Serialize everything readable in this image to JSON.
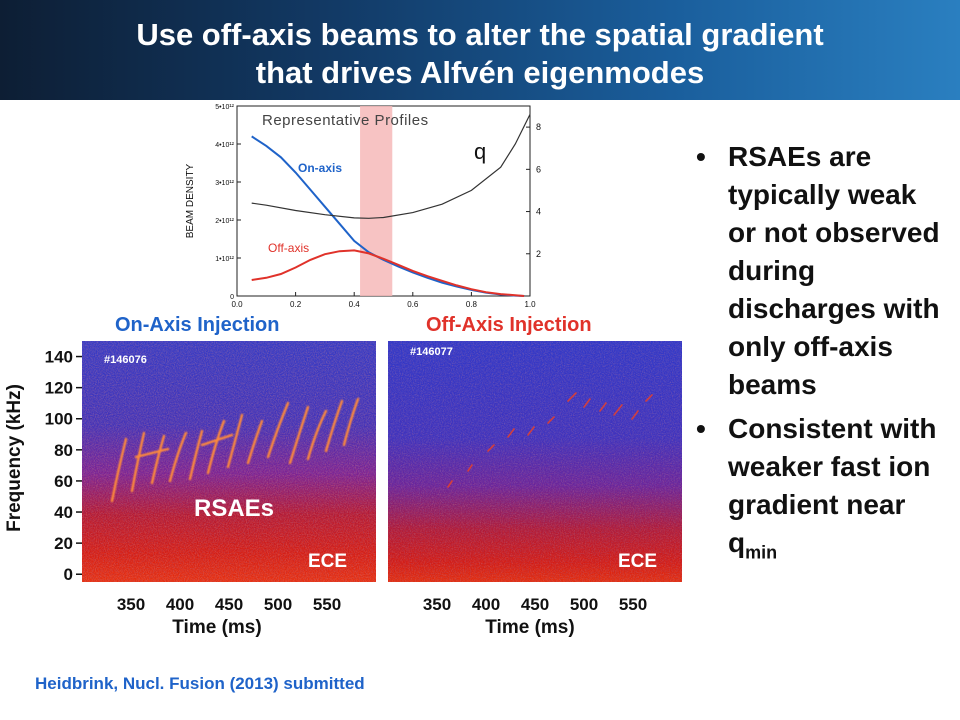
{
  "title": {
    "line1": "Use off-axis beams to alter the spatial gradient",
    "line2": "that drives Alfvén eigenmodes"
  },
  "bullets": [
    "RSAEs are typically weak or not observed during discharges with only off-axis beams",
    "Consistent with weaker fast ion gradient near q"
  ],
  "bullet_subscript": "min",
  "citation": "Heidbrink, Nucl. Fusion (2013) submitted",
  "colors": {
    "on_axis": "#1f63c9",
    "off_axis": "#e0322a",
    "q_line": "#333333",
    "band": "#f6b9b9",
    "title_bar_start": "#0d1e34",
    "title_bar_end": "#2a7fc0"
  },
  "chart_data": [
    {
      "type": "line",
      "title": "Representative Profiles",
      "ylabel": "BEAM DENSITY",
      "xlim": [
        0,
        1.0
      ],
      "ylim": [
        0,
        5000000000000.0
      ],
      "y2lim": [
        0,
        9
      ],
      "x_ticks": [
        "0.0",
        "0.2",
        "0.4",
        "0.6",
        "0.8",
        "1.0"
      ],
      "y_tick_values": [
        0,
        1000000000000.0,
        2000000000000.0,
        3000000000000.0,
        4000000000000.0,
        5000000000000.0
      ],
      "y_ticks": [
        "0",
        "1•10¹²",
        "2•10¹²",
        "3•10¹²",
        "4•10¹²",
        "5•10¹²"
      ],
      "y2_tick_values": [
        2,
        4,
        6,
        8
      ],
      "y2_ticks": [
        "2",
        "4",
        "6",
        "8"
      ],
      "highlight_band": [
        0.42,
        0.53
      ],
      "series": [
        {
          "name": "On-axis",
          "axis": "left",
          "x": [
            0.05,
            0.1,
            0.15,
            0.2,
            0.25,
            0.3,
            0.35,
            0.4,
            0.45,
            0.5,
            0.55,
            0.6,
            0.65,
            0.7,
            0.75,
            0.8,
            0.85,
            0.9,
            0.95,
            0.98
          ],
          "y": [
            4200000000000.0,
            3950000000000.0,
            3650000000000.0,
            3250000000000.0,
            2800000000000.0,
            2350000000000.0,
            1900000000000.0,
            1450000000000.0,
            1150000000000.0,
            950000000000.0,
            780000000000.0,
            620000000000.0,
            480000000000.0,
            350000000000.0,
            250000000000.0,
            160000000000.0,
            90000000000.0,
            40000000000.0,
            10000000000.0,
            0
          ]
        },
        {
          "name": "Off-axis",
          "axis": "left",
          "x": [
            0.05,
            0.1,
            0.15,
            0.2,
            0.25,
            0.3,
            0.35,
            0.4,
            0.45,
            0.5,
            0.55,
            0.6,
            0.65,
            0.7,
            0.75,
            0.8,
            0.85,
            0.9,
            0.95,
            0.98
          ],
          "y": [
            420000000000.0,
            480000000000.0,
            580000000000.0,
            750000000000.0,
            950000000000.0,
            1100000000000.0,
            1180000000000.0,
            1200000000000.0,
            1120000000000.0,
            980000000000.0,
            820000000000.0,
            660000000000.0,
            520000000000.0,
            400000000000.0,
            280000000000.0,
            180000000000.0,
            100000000000.0,
            50000000000.0,
            20000000000.0,
            0
          ]
        },
        {
          "name": "q",
          "axis": "right",
          "x": [
            0.05,
            0.1,
            0.2,
            0.3,
            0.4,
            0.45,
            0.5,
            0.6,
            0.7,
            0.8,
            0.9,
            0.95,
            1.0
          ],
          "y": [
            4.4,
            4.3,
            4.05,
            3.85,
            3.7,
            3.68,
            3.72,
            3.95,
            4.35,
            5.0,
            6.1,
            7.2,
            8.6
          ]
        }
      ]
    },
    {
      "type": "heatmap",
      "title": "On-Axis Injection",
      "shot": "#146076",
      "xlabel": "Time (ms)",
      "ylabel": "Frequency (kHz)",
      "xlim": [
        300,
        600
      ],
      "ylim": [
        -5,
        150
      ],
      "x_ticks": [
        "350",
        "400",
        "450",
        "500",
        "550"
      ],
      "y_ticks": [
        "0",
        "20",
        "40",
        "60",
        "80",
        "100",
        "120",
        "140"
      ],
      "annotations": [
        "RSAEs",
        "ECE"
      ]
    },
    {
      "type": "heatmap",
      "title": "Off-Axis Injection",
      "shot": "#146077",
      "xlabel": "Time (ms)",
      "xlim": [
        300,
        600
      ],
      "ylim": [
        -5,
        150
      ],
      "x_ticks": [
        "350",
        "400",
        "450",
        "500",
        "550"
      ],
      "annotations": [
        "ECE"
      ]
    }
  ]
}
